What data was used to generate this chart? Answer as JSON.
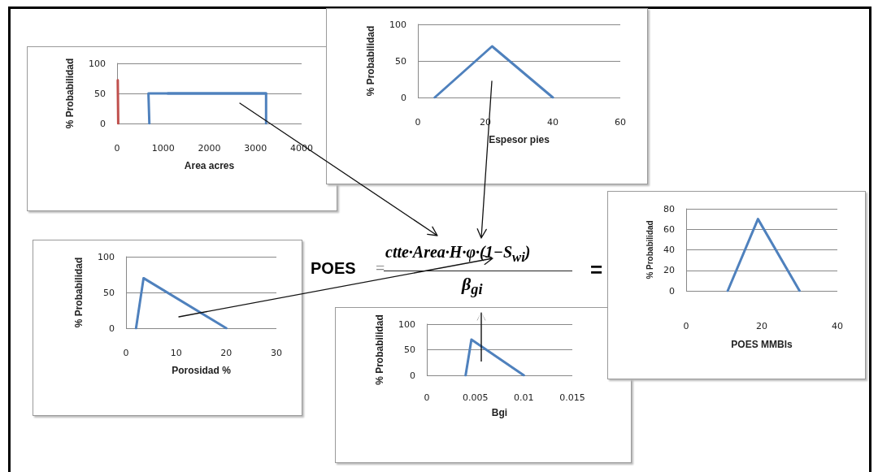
{
  "chart_data": [
    {
      "type": "line",
      "xlabel": "Area acres",
      "ylabel": "% Probabilidad",
      "xlim": [
        0,
        4000
      ],
      "xticks": [
        0,
        1000,
        2000,
        3000,
        4000
      ],
      "ylim": [
        0,
        100
      ],
      "yticks": [
        0,
        50,
        100
      ],
      "grid": "y",
      "series": [
        {
          "color": "#c0504d",
          "x": [
            15,
            25
          ],
          "values": [
            72,
            0
          ]
        },
        {
          "color": "#4f81bd",
          "x": [
            700,
            680,
            3230,
            3230
          ],
          "values": [
            0,
            50,
            50,
            0
          ]
        },
        {
          "color": "#4f81bd",
          "x": [
            1100,
            3230
          ],
          "values": [
            50,
            50
          ]
        }
      ]
    },
    {
      "type": "line",
      "xlabel": "Espesor pies",
      "ylabel": "% Probabilidad",
      "xlim": [
        0,
        60
      ],
      "xticks": [
        0,
        20,
        40,
        60
      ],
      "ylim": [
        0,
        100
      ],
      "yticks": [
        0,
        50,
        100
      ],
      "grid": "y",
      "series": [
        {
          "color": "#4f81bd",
          "x": [
            5,
            22,
            40
          ],
          "values": [
            0,
            70,
            0
          ]
        }
      ]
    },
    {
      "type": "line",
      "xlabel": "Porosidad %",
      "ylabel": "% Probabilidad",
      "xlim": [
        0,
        30
      ],
      "xticks": [
        0,
        10,
        20,
        30
      ],
      "ylim": [
        0,
        100
      ],
      "yticks": [
        0,
        50,
        100
      ],
      "grid": "y",
      "series": [
        {
          "color": "#4f81bd",
          "x": [
            2,
            3.5,
            20
          ],
          "values": [
            0,
            70,
            0
          ]
        }
      ]
    },
    {
      "type": "line",
      "xlabel": "Bgi",
      "ylabel": "% Probabilidad",
      "xlim": [
        0,
        0.015
      ],
      "xticks": [
        0,
        0.005,
        0.01,
        0.015
      ],
      "ylim": [
        0,
        100
      ],
      "yticks": [
        0,
        50,
        100
      ],
      "grid": "y",
      "series": [
        {
          "color": "#4f81bd",
          "x": [
            0.004,
            0.0046,
            0.01
          ],
          "values": [
            0,
            70,
            0
          ]
        }
      ]
    },
    {
      "type": "line",
      "xlabel": "POES MMBls",
      "ylabel": "% Probabilidad",
      "xlim": [
        0,
        40
      ],
      "xticks": [
        0,
        20,
        40
      ],
      "ylim": [
        0,
        80
      ],
      "yticks": [
        0,
        20,
        40,
        60,
        80
      ],
      "grid": "y",
      "series": [
        {
          "color": "#4f81bd",
          "x": [
            11,
            19,
            30
          ],
          "values": [
            0,
            70,
            0
          ]
        }
      ]
    },
    {
      "type": "other",
      "annotations": [
        "POES",
        "=",
        "ctte·Area·H·φ·(1−S$_{wi}$)",
        "β$_{gi}$",
        "="
      ]
    }
  ]
}
